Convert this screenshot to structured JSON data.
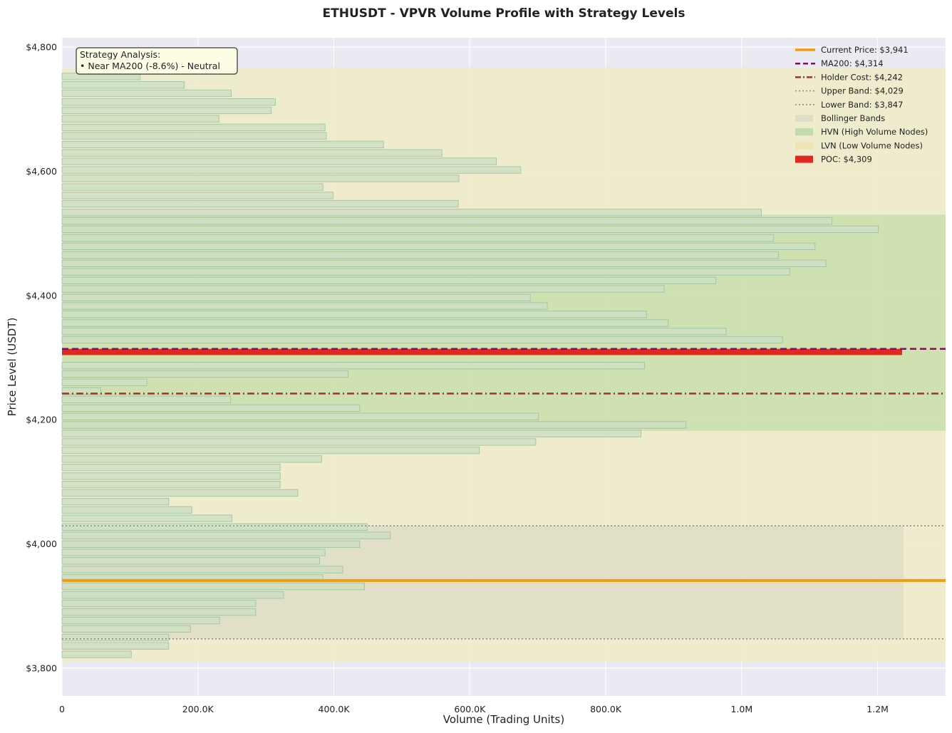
{
  "chart_data": {
    "type": "bar",
    "orientation": "horizontal",
    "title": "ETHUSDT - VPVR Volume Profile with Strategy Levels",
    "xlabel": "Volume (Trading Units)",
    "ylabel": "Price Level (USDT)",
    "xlim": [
      0,
      1300000
    ],
    "ylim": [
      3755,
      4815
    ],
    "x_ticks": [
      0,
      200000,
      400000,
      600000,
      800000,
      1000000,
      1200000
    ],
    "x_tick_labels": [
      "0",
      "200.0K",
      "400.0K",
      "600.0K",
      "800.0K",
      "1.0M",
      "1.2M"
    ],
    "y_ticks": [
      3800,
      4000,
      4200,
      4400,
      4600,
      4800
    ],
    "y_tick_labels": [
      "$3,800",
      "$4,000",
      "$4,200",
      "$4,400",
      "$4,600",
      "$4,800"
    ],
    "grid": true,
    "legend_position": "top-right",
    "bin_height": 13.6,
    "price_levels": [
      4766.5,
      4752.5,
      4739.0,
      4725.5,
      4711.5,
      4698.0,
      4684.5,
      4670.5,
      4657.0,
      4643.0,
      4629.5,
      4616.0,
      4602.0,
      4588.5,
      4574.5,
      4561.0,
      4547.5,
      4533.5,
      4520.0,
      4506.5,
      4492.5,
      4479.0,
      4465.0,
      4451.5,
      4438.0,
      4424.0,
      4410.5,
      4396.5,
      4383.0,
      4369.5,
      4355.5,
      4342.0,
      4328.5,
      4314.5,
      4301.0,
      4287.0,
      4273.5,
      4260.0,
      4246.0,
      4232.5,
      4218.5,
      4205.0,
      4191.5,
      4177.5,
      4164.0,
      4150.5,
      4136.5,
      4123.0,
      4109.0,
      4095.5,
      4082.0,
      4068.0,
      4054.5,
      4041.0,
      4027.0,
      4013.5,
      3999.5,
      3986.0,
      3972.5,
      3958.5,
      3945.0,
      3931.5,
      3917.5,
      3904.0,
      3890.0,
      3876.5,
      3863.0,
      3849.0,
      3835.5,
      3822.0,
      3808.0
    ],
    "volumes": [
      0,
      115000,
      180000,
      249000,
      314000,
      308000,
      231000,
      387000,
      389000,
      473000,
      559000,
      639000,
      675000,
      584000,
      384000,
      399000,
      583000,
      1029000,
      1133000,
      1201000,
      1047000,
      1108000,
      1054000,
      1124000,
      1071000,
      962000,
      886000,
      689000,
      714000,
      860000,
      892000,
      977000,
      1060000,
      0,
      0,
      857000,
      421000,
      125000,
      57000,
      248000,
      438000,
      701000,
      918000,
      852000,
      697000,
      614000,
      382000,
      321000,
      321000,
      321000,
      347000,
      157000,
      191000,
      250000,
      449000,
      483000,
      438000,
      387000,
      379000,
      413000,
      384000,
      445000,
      326000,
      285000,
      285000,
      232000,
      189000,
      157000,
      157000,
      102000,
      0
    ],
    "poc": {
      "price": 4309,
      "volume": 1236000,
      "label": "POC: $4,309"
    },
    "ma200": {
      "price": 4314,
      "label": "MA200: $4,314"
    },
    "holder_cost": {
      "price": 4242,
      "label": "Holder Cost: $4,242"
    },
    "current_price": {
      "price": 3941,
      "label": "Current Price: $3,941"
    },
    "upper_band": {
      "price": 4029,
      "label": "Upper Band: $4,029"
    },
    "lower_band": {
      "price": 3847,
      "label": "Lower Band: $3,847"
    },
    "hvn_zone": {
      "low": 4182,
      "high": 4530
    },
    "lvn_zone": {
      "low": 3810,
      "high": 4767
    },
    "bollinger_zone": {
      "low": 3847,
      "high": 4029,
      "x_end": 1238000
    },
    "legend": [
      {
        "key": "current",
        "label": "Current Price: $3,941",
        "style": "solid-thick",
        "color": "#f39c12"
      },
      {
        "key": "ma200",
        "label": "MA200: $4,314",
        "style": "dashed",
        "color": "#7b1060"
      },
      {
        "key": "holder",
        "label": "Holder Cost: $4,242",
        "style": "dashdot",
        "color": "#a0322a"
      },
      {
        "key": "upper",
        "label": "Upper Band: $4,029",
        "style": "dotted",
        "color": "#8c8c8c"
      },
      {
        "key": "lower",
        "label": "Lower Band: $3,847",
        "style": "dotted",
        "color": "#8c8c8c"
      },
      {
        "key": "bb",
        "label": "Bollinger Bands",
        "style": "patch",
        "color": "#dcdcc4"
      },
      {
        "key": "hvn",
        "label": "HVN (High Volume Nodes)",
        "style": "patch",
        "color": "#bcd9a6"
      },
      {
        "key": "lvn",
        "label": "LVN (Low Volume Nodes)",
        "style": "patch",
        "color": "#efe2b0"
      },
      {
        "key": "poc",
        "label": "POC: $4,309",
        "style": "patch",
        "color": "#e0281e"
      }
    ],
    "annotation": {
      "lines": [
        "Strategy Analysis:",
        "• Near MA200 (-8.6%) - Neutral"
      ]
    },
    "colors": {
      "plot_bg": "#eaeaf2",
      "bar_fill": "#cfe0c3",
      "bar_edge": "#9cc0a4",
      "lvn_fill": "#eeecc8",
      "hvn_fill": "#c6dda8",
      "bb_fill": "#dcdcc4",
      "poc": "#e0281e",
      "current": "#f39c12",
      "ma200": "#7b1060",
      "holder": "#a0322a",
      "band": "#8c8c8c",
      "annotation_bg": "#fdfde6"
    }
  }
}
